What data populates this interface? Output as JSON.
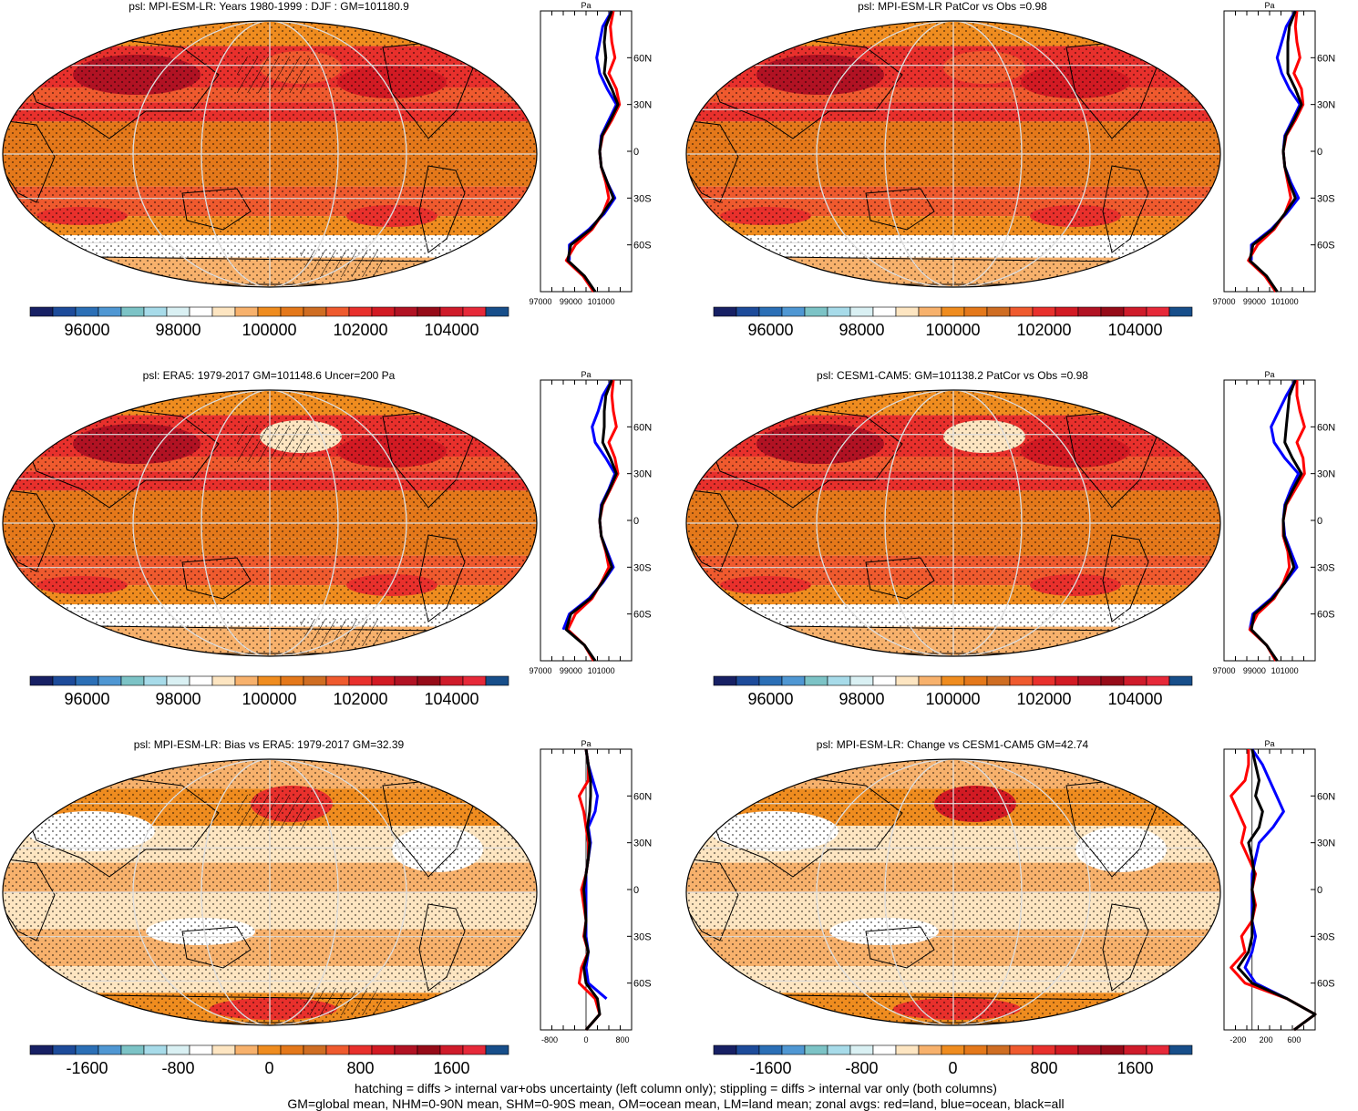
{
  "footer": {
    "line1": "hatching = diffs > internal var+obs uncertainty (left column only); stippling = diffs > internal var only (both columns)",
    "line2": "GM=global mean, NHM=0-90N mean, SHM=0-90S mean, OM=ocean mean, LM=land mean; zonal avgs: red=land, blue=ocean, black=all"
  },
  "colors": {
    "abs_scale": [
      "#172064",
      "#1d4b9a",
      "#2b6fb6",
      "#4f97d3",
      "#7cc3c6",
      "#a7dbe9",
      "#d9f0f3",
      "#ffffff",
      "#fde5c1",
      "#f7b16c",
      "#ef8c1f",
      "#e4781a",
      "#cf6d22",
      "#ef5a2e",
      "#e8302c",
      "#d21a23",
      "#b11223",
      "#960b18",
      "#cf1b2a",
      "#e62939",
      "#174e8a"
    ],
    "diff_scale": [
      "#172064",
      "#1d4b9a",
      "#2b6fb6",
      "#4f97d3",
      "#7cc3c6",
      "#a7dbe9",
      "#d9f0f3",
      "#ffffff",
      "#fde5c1",
      "#f7b16c",
      "#ef8c1f",
      "#e4781a",
      "#cf6d22",
      "#ef5a2e",
      "#e8302c",
      "#d21a23",
      "#b11223",
      "#960b18",
      "#cf1b2a",
      "#e62939",
      "#174e8a"
    ],
    "land_line": "#ff0000",
    "ocean_line": "#0000ff",
    "all_line": "#000000"
  },
  "chart_data": [
    {
      "type": "heatmap",
      "title": "psl: MPI-ESM-LR: Years 1980-1999 : DJF : GM=101180.9",
      "colorbar_labels": [
        "96000",
        "98000",
        "100000",
        "102000",
        "104000"
      ],
      "profile": {
        "unit_label": "Pa",
        "lat_ticks": [
          "60N",
          "30N",
          "0",
          "30S",
          "60S"
        ],
        "x_ticks": [
          "97000",
          "99000",
          "101000"
        ],
        "xlim": [
          97000,
          103000
        ],
        "lat": [
          -90,
          -80,
          -70,
          -60,
          -50,
          -40,
          -30,
          -20,
          -10,
          0,
          10,
          20,
          30,
          40,
          50,
          60,
          70,
          80,
          90
        ],
        "land": [
          100500,
          99800,
          98700,
          99300,
          100400,
          101100,
          101500,
          101300,
          101000,
          100900,
          101100,
          101700,
          102200,
          102000,
          101500,
          101900,
          101700,
          101600,
          101800
        ],
        "ocean": [
          null,
          null,
          98900,
          98900,
          100200,
          101200,
          101900,
          101400,
          101000,
          100900,
          101000,
          101500,
          102000,
          101400,
          100900,
          100700,
          100900,
          101100,
          101700
        ],
        "all": [
          100600,
          99900,
          98800,
          99000,
          100300,
          101100,
          101800,
          101400,
          101000,
          100900,
          101050,
          101600,
          102100,
          101700,
          101200,
          101300,
          101200,
          101300,
          101700
        ]
      }
    },
    {
      "type": "heatmap",
      "title": "psl: MPI-ESM-LR PatCor vs Obs =0.98",
      "colorbar_labels": [
        "96000",
        "98000",
        "100000",
        "102000",
        "104000"
      ],
      "profile": {
        "unit_label": "Pa",
        "lat_ticks": [
          "60N",
          "30N",
          "0",
          "30S",
          "60S"
        ],
        "x_ticks": [
          "97000",
          "99000",
          "101000"
        ],
        "xlim": [
          97000,
          103000
        ],
        "lat": [
          -90,
          -80,
          -70,
          -60,
          -50,
          -40,
          -30,
          -20,
          -10,
          0,
          10,
          20,
          30,
          40,
          50,
          60,
          70,
          80,
          90
        ],
        "land": [
          100400,
          99700,
          98600,
          99200,
          100300,
          101000,
          101400,
          101200,
          101000,
          100900,
          101100,
          101700,
          102200,
          102100,
          101600,
          102000,
          101800,
          101700,
          101800
        ],
        "ocean": [
          null,
          null,
          98800,
          98800,
          100100,
          101100,
          101900,
          101400,
          101000,
          100900,
          101000,
          101500,
          102000,
          101300,
          100800,
          100500,
          100800,
          101100,
          101700
        ],
        "all": [
          100500,
          99800,
          98700,
          98900,
          100200,
          101000,
          101700,
          101300,
          101000,
          100900,
          101050,
          101600,
          102100,
          101700,
          101200,
          101200,
          101200,
          101300,
          101700
        ]
      }
    },
    {
      "type": "heatmap",
      "title": "psl: ERA5: 1979-2017 GM=101148.6 Uncer=200 Pa",
      "colorbar_labels": [
        "96000",
        "98000",
        "100000",
        "102000",
        "104000"
      ],
      "profile": {
        "unit_label": "Pa",
        "lat_ticks": [
          "60N",
          "30N",
          "0",
          "30S",
          "60S"
        ],
        "x_ticks": [
          "97000",
          "99000",
          "101000"
        ],
        "xlim": [
          97000,
          103000
        ],
        "lat": [
          -90,
          -80,
          -70,
          -60,
          -50,
          -40,
          -30,
          -20,
          -10,
          0,
          10,
          20,
          30,
          40,
          50,
          60,
          70,
          80,
          90
        ],
        "land": [
          100500,
          99900,
          98800,
          99300,
          100400,
          101000,
          101500,
          101300,
          101000,
          100900,
          101100,
          101600,
          102100,
          101900,
          101500,
          102000,
          101800,
          101700,
          101800
        ],
        "ocean": [
          null,
          null,
          98500,
          98900,
          100200,
          101100,
          101800,
          101400,
          101000,
          100900,
          101000,
          101500,
          101900,
          101300,
          100600,
          100400,
          100800,
          101100,
          101700
        ],
        "all": [
          100600,
          99900,
          98700,
          99000,
          100300,
          101050,
          101700,
          101350,
          101000,
          100900,
          101050,
          101550,
          102000,
          101600,
          101100,
          101200,
          101200,
          101300,
          101700
        ]
      }
    },
    {
      "type": "heatmap",
      "title": "psl: CESM1-CAM5: GM=101138.2 PatCor vs Obs =0.98",
      "colorbar_labels": [
        "96000",
        "98000",
        "100000",
        "102000",
        "104000"
      ],
      "profile": {
        "unit_label": "Pa",
        "lat_ticks": [
          "60N",
          "30N",
          "0",
          "30S",
          "60S"
        ],
        "x_ticks": [
          "97000",
          "99000",
          "101000"
        ],
        "xlim": [
          97000,
          103000
        ],
        "lat": [
          -90,
          -80,
          -70,
          -60,
          -50,
          -40,
          -30,
          -20,
          -10,
          0,
          10,
          20,
          30,
          40,
          50,
          60,
          70,
          80,
          90
        ],
        "land": [
          100400,
          99800,
          98700,
          99200,
          100300,
          100900,
          101300,
          101200,
          100900,
          100900,
          101100,
          101700,
          102300,
          102200,
          101800,
          102300,
          102000,
          101800,
          101800
        ],
        "ocean": [
          null,
          null,
          98700,
          98900,
          100100,
          101000,
          101800,
          101400,
          101000,
          100900,
          101000,
          101400,
          101900,
          101000,
          100300,
          100100,
          100600,
          101100,
          101700
        ],
        "all": [
          100500,
          99800,
          98800,
          99000,
          100200,
          101000,
          101600,
          101300,
          100950,
          100900,
          101050,
          101550,
          102100,
          101500,
          101000,
          101100,
          101200,
          101300,
          101700
        ]
      }
    },
    {
      "type": "heatmap",
      "title": "psl: MPI-ESM-LR: Bias vs ERA5: 1979-2017 GM=32.39",
      "colorbar_labels": [
        "-1600",
        "-800",
        "0",
        "800",
        "1600"
      ],
      "profile": {
        "unit_label": "Pa",
        "lat_ticks": [
          "60N",
          "30N",
          "0",
          "30S",
          "60S"
        ],
        "x_ticks": [
          "-800",
          "0",
          "800"
        ],
        "xlim": [
          -1000,
          1000
        ],
        "lat": [
          -90,
          -80,
          -70,
          -60,
          -50,
          -40,
          -30,
          -20,
          -10,
          0,
          10,
          20,
          30,
          40,
          50,
          60,
          70,
          80,
          90
        ],
        "land": [
          0,
          300,
          200,
          -150,
          -100,
          50,
          -50,
          0,
          -50,
          -100,
          0,
          50,
          50,
          0,
          -50,
          -150,
          50,
          50,
          0
        ],
        "ocean": [
          null,
          null,
          450,
          50,
          0,
          50,
          0,
          0,
          0,
          0,
          0,
          50,
          100,
          50,
          200,
          250,
          150,
          50,
          0
        ],
        "all": [
          0,
          300,
          250,
          0,
          -50,
          50,
          -30,
          0,
          -20,
          -50,
          0,
          50,
          80,
          30,
          80,
          100,
          100,
          50,
          0
        ]
      }
    },
    {
      "type": "heatmap",
      "title": "psl: MPI-ESM-LR: Change vs CESM1-CAM5 GM=42.74",
      "colorbar_labels": [
        "-1600",
        "-800",
        "0",
        "800",
        "1600"
      ],
      "profile": {
        "unit_label": "Pa",
        "lat_ticks": [
          "60N",
          "30N",
          "0",
          "30S",
          "60S"
        ],
        "x_ticks": [
          "-200",
          "200",
          "600"
        ],
        "xlim": [
          -400,
          900
        ],
        "lat": [
          -90,
          -80,
          -70,
          -60,
          -50,
          -40,
          -30,
          -20,
          -10,
          0,
          10,
          20,
          30,
          40,
          50,
          60,
          70,
          80,
          90
        ],
        "land": [
          600,
          900,
          500,
          -100,
          -300,
          -100,
          -150,
          0,
          50,
          0,
          50,
          -50,
          -150,
          -100,
          -200,
          -300,
          -100,
          -50,
          -50
        ],
        "ocean": [
          null,
          null,
          500,
          50,
          -100,
          0,
          50,
          0,
          0,
          0,
          0,
          50,
          100,
          300,
          450,
          350,
          250,
          150,
          0
        ],
        "all": [
          600,
          900,
          500,
          0,
          -200,
          -50,
          0,
          0,
          30,
          0,
          30,
          0,
          -50,
          100,
          150,
          50,
          100,
          50,
          0
        ]
      }
    }
  ]
}
